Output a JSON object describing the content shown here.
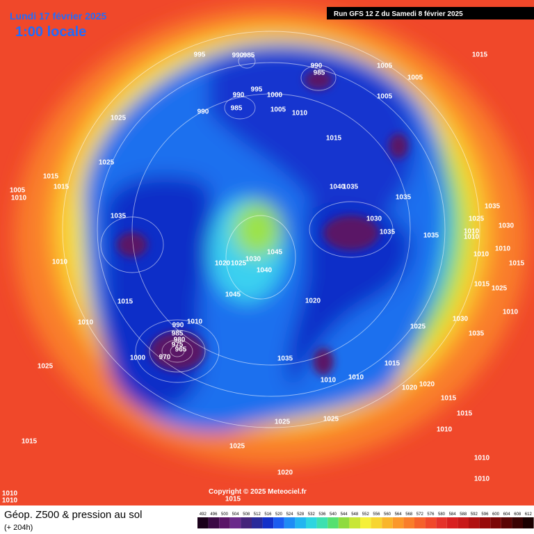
{
  "header": {
    "date": "Lundi 17 février 2025",
    "time": "1:00 locale",
    "run": "Run GFS 12 Z du Samedi 8 février 2025"
  },
  "footer": {
    "title": "Géop. Z500 & pression au sol",
    "lead": "(+ 204h)",
    "copyright": "Copyright © 2025 Meteociel.fr"
  },
  "legend": {
    "levels": [
      492,
      496,
      500,
      504,
      508,
      512,
      516,
      520,
      524,
      528,
      532,
      536,
      540,
      544,
      548,
      552,
      556,
      560,
      564,
      568,
      572,
      576,
      580,
      584,
      588,
      592,
      596,
      600,
      604,
      608,
      612
    ]
  },
  "isobar_labels": [
    995,
    990,
    985,
    990,
    985,
    1005,
    1005,
    1005,
    990,
    985,
    995,
    1000,
    1005,
    1010,
    990,
    1015,
    1025,
    1025,
    1015,
    1015,
    1015,
    1005,
    1010,
    1040,
    1035,
    1035,
    1035,
    1030,
    1035,
    1035,
    1035,
    1025,
    1030,
    1010,
    1010,
    1045,
    1030,
    1020,
    1025,
    1040,
    1010,
    1010,
    1010,
    1015,
    1015,
    1025,
    1045,
    1015,
    1020,
    1010,
    1030,
    1010,
    1025,
    1035,
    990,
    1010,
    985,
    980,
    975,
    965,
    970,
    1000,
    1035,
    1015,
    1025,
    1010,
    1010,
    1020,
    1020,
    1015,
    1015,
    1025,
    1025,
    1010,
    1015,
    1025,
    1020,
    1010,
    1010,
    1010,
    1010,
    1015
  ]
}
